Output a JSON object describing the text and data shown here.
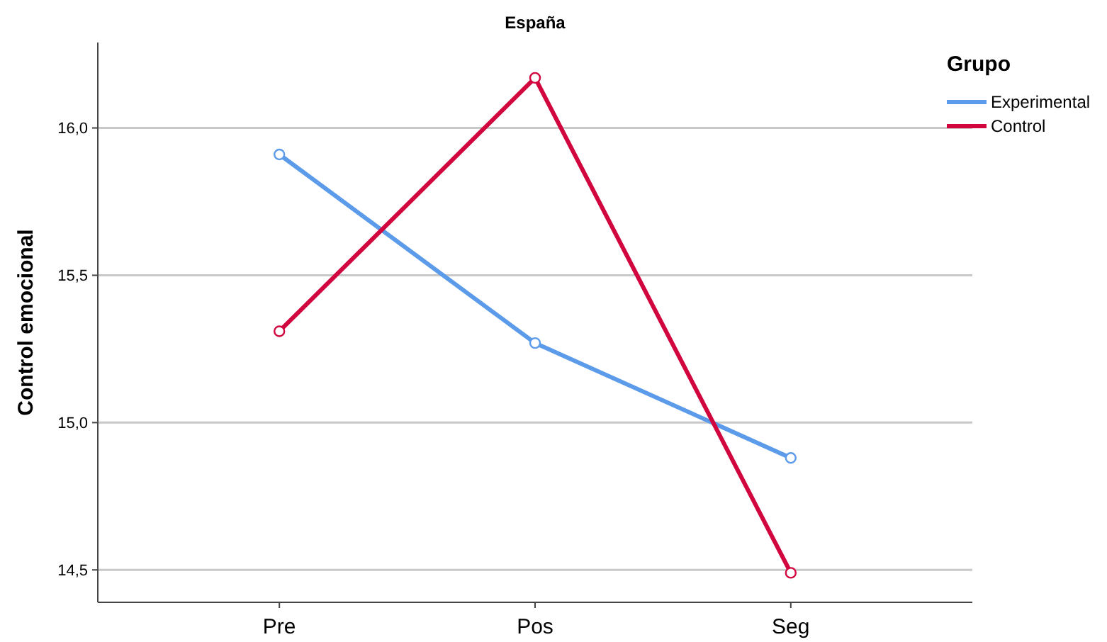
{
  "chart_data": {
    "type": "line",
    "title": "España",
    "ylabel": "Control emocional",
    "legend_title": "Grupo",
    "categories": [
      "Pre",
      "Pos",
      "Seg"
    ],
    "series": [
      {
        "name": "Experimental",
        "color": "#5b9bea",
        "values": [
          15.91,
          15.27,
          14.88
        ]
      },
      {
        "name": "Control",
        "color": "#d1063f",
        "values": [
          15.31,
          16.17,
          14.49
        ]
      }
    ],
    "ylim": [
      14.39,
      16.29
    ],
    "yticks": [
      {
        "value": 14.5,
        "label": "14,5"
      },
      {
        "value": 15,
        "label": "15,0"
      },
      {
        "value": 15.5,
        "label": "15,5"
      },
      {
        "value": 16,
        "label": "16,0"
      }
    ],
    "grid": "y",
    "legend": "top right",
    "marker": "circle",
    "line_style": "solid"
  }
}
